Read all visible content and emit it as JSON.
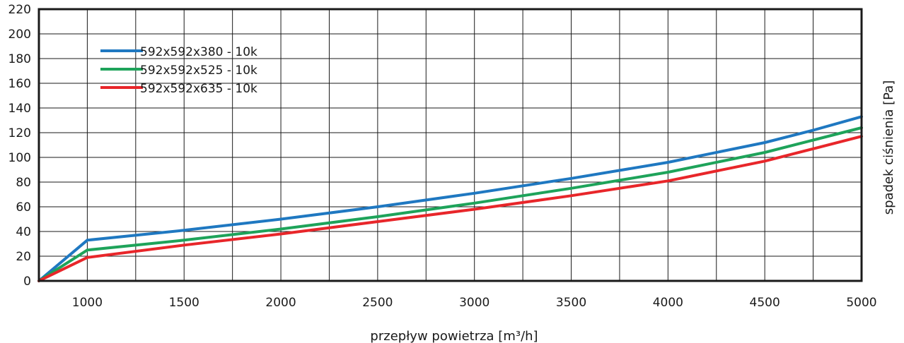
{
  "chart_data": {
    "type": "line",
    "xlabel": "przepływ powietrza [m³/h]",
    "ylabel": "spadek ciśnienia [Pa]",
    "xlim": [
      750,
      5000
    ],
    "ylim": [
      0,
      220
    ],
    "x_ticks": [
      1000,
      1500,
      2000,
      2500,
      3000,
      3500,
      4000,
      4500,
      5000
    ],
    "y_ticks": [
      0,
      20,
      40,
      60,
      80,
      100,
      120,
      140,
      160,
      180,
      200,
      220
    ],
    "y_tick_labels": [
      "0",
      "20",
      "40",
      "60",
      "80",
      "100",
      "120",
      "140",
      "160",
      "180",
      "200",
      "220"
    ],
    "grid": true,
    "legend_position": "top-left",
    "series": [
      {
        "name": "592x592x380 - 10k",
        "color": "#1f78c1",
        "x": [
          750,
          1000,
          1500,
          2000,
          2500,
          3000,
          3500,
          4000,
          4500,
          4750,
          5000
        ],
        "values": [
          0,
          33,
          41,
          50,
          60,
          71,
          83,
          96,
          112,
          122,
          133
        ]
      },
      {
        "name": "592x592x525 - 10k",
        "color": "#1ea35a",
        "x": [
          750,
          1000,
          1500,
          2000,
          2500,
          3000,
          3500,
          4000,
          4500,
          4750,
          5000
        ],
        "values": [
          0,
          25,
          33,
          42,
          52,
          63,
          75,
          88,
          104,
          114,
          124
        ]
      },
      {
        "name": "592x592x635 - 10k",
        "color": "#e8262a",
        "x": [
          750,
          1000,
          1500,
          2000,
          2500,
          3000,
          3500,
          4000,
          4500,
          4750,
          5000
        ],
        "values": [
          0,
          19,
          29,
          38,
          48,
          58,
          69,
          81,
          97,
          107,
          117
        ]
      }
    ]
  }
}
